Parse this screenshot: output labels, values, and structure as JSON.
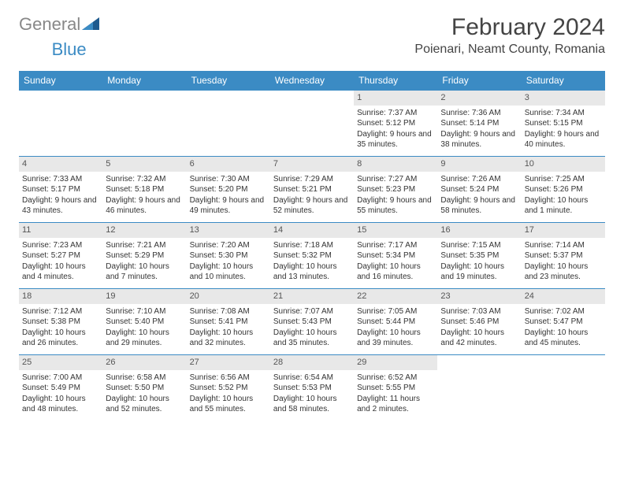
{
  "logo": {
    "text1": "General",
    "text2": "Blue"
  },
  "title": "February 2024",
  "location": "Poienari, Neamt County, Romania",
  "colors": {
    "header_bg": "#3b8bc4",
    "header_text": "#ffffff",
    "daynum_bg": "#e8e8e8",
    "border": "#3b8bc4",
    "text": "#333333",
    "background": "#ffffff"
  },
  "day_headers": [
    "Sunday",
    "Monday",
    "Tuesday",
    "Wednesday",
    "Thursday",
    "Friday",
    "Saturday"
  ],
  "weeks": [
    [
      {
        "empty": true
      },
      {
        "empty": true
      },
      {
        "empty": true
      },
      {
        "empty": true
      },
      {
        "num": "1",
        "sunrise": "Sunrise: 7:37 AM",
        "sunset": "Sunset: 5:12 PM",
        "daylight": "Daylight: 9 hours and 35 minutes."
      },
      {
        "num": "2",
        "sunrise": "Sunrise: 7:36 AM",
        "sunset": "Sunset: 5:14 PM",
        "daylight": "Daylight: 9 hours and 38 minutes."
      },
      {
        "num": "3",
        "sunrise": "Sunrise: 7:34 AM",
        "sunset": "Sunset: 5:15 PM",
        "daylight": "Daylight: 9 hours and 40 minutes."
      }
    ],
    [
      {
        "num": "4",
        "sunrise": "Sunrise: 7:33 AM",
        "sunset": "Sunset: 5:17 PM",
        "daylight": "Daylight: 9 hours and 43 minutes."
      },
      {
        "num": "5",
        "sunrise": "Sunrise: 7:32 AM",
        "sunset": "Sunset: 5:18 PM",
        "daylight": "Daylight: 9 hours and 46 minutes."
      },
      {
        "num": "6",
        "sunrise": "Sunrise: 7:30 AM",
        "sunset": "Sunset: 5:20 PM",
        "daylight": "Daylight: 9 hours and 49 minutes."
      },
      {
        "num": "7",
        "sunrise": "Sunrise: 7:29 AM",
        "sunset": "Sunset: 5:21 PM",
        "daylight": "Daylight: 9 hours and 52 minutes."
      },
      {
        "num": "8",
        "sunrise": "Sunrise: 7:27 AM",
        "sunset": "Sunset: 5:23 PM",
        "daylight": "Daylight: 9 hours and 55 minutes."
      },
      {
        "num": "9",
        "sunrise": "Sunrise: 7:26 AM",
        "sunset": "Sunset: 5:24 PM",
        "daylight": "Daylight: 9 hours and 58 minutes."
      },
      {
        "num": "10",
        "sunrise": "Sunrise: 7:25 AM",
        "sunset": "Sunset: 5:26 PM",
        "daylight": "Daylight: 10 hours and 1 minute."
      }
    ],
    [
      {
        "num": "11",
        "sunrise": "Sunrise: 7:23 AM",
        "sunset": "Sunset: 5:27 PM",
        "daylight": "Daylight: 10 hours and 4 minutes."
      },
      {
        "num": "12",
        "sunrise": "Sunrise: 7:21 AM",
        "sunset": "Sunset: 5:29 PM",
        "daylight": "Daylight: 10 hours and 7 minutes."
      },
      {
        "num": "13",
        "sunrise": "Sunrise: 7:20 AM",
        "sunset": "Sunset: 5:30 PM",
        "daylight": "Daylight: 10 hours and 10 minutes."
      },
      {
        "num": "14",
        "sunrise": "Sunrise: 7:18 AM",
        "sunset": "Sunset: 5:32 PM",
        "daylight": "Daylight: 10 hours and 13 minutes."
      },
      {
        "num": "15",
        "sunrise": "Sunrise: 7:17 AM",
        "sunset": "Sunset: 5:34 PM",
        "daylight": "Daylight: 10 hours and 16 minutes."
      },
      {
        "num": "16",
        "sunrise": "Sunrise: 7:15 AM",
        "sunset": "Sunset: 5:35 PM",
        "daylight": "Daylight: 10 hours and 19 minutes."
      },
      {
        "num": "17",
        "sunrise": "Sunrise: 7:14 AM",
        "sunset": "Sunset: 5:37 PM",
        "daylight": "Daylight: 10 hours and 23 minutes."
      }
    ],
    [
      {
        "num": "18",
        "sunrise": "Sunrise: 7:12 AM",
        "sunset": "Sunset: 5:38 PM",
        "daylight": "Daylight: 10 hours and 26 minutes."
      },
      {
        "num": "19",
        "sunrise": "Sunrise: 7:10 AM",
        "sunset": "Sunset: 5:40 PM",
        "daylight": "Daylight: 10 hours and 29 minutes."
      },
      {
        "num": "20",
        "sunrise": "Sunrise: 7:08 AM",
        "sunset": "Sunset: 5:41 PM",
        "daylight": "Daylight: 10 hours and 32 minutes."
      },
      {
        "num": "21",
        "sunrise": "Sunrise: 7:07 AM",
        "sunset": "Sunset: 5:43 PM",
        "daylight": "Daylight: 10 hours and 35 minutes."
      },
      {
        "num": "22",
        "sunrise": "Sunrise: 7:05 AM",
        "sunset": "Sunset: 5:44 PM",
        "daylight": "Daylight: 10 hours and 39 minutes."
      },
      {
        "num": "23",
        "sunrise": "Sunrise: 7:03 AM",
        "sunset": "Sunset: 5:46 PM",
        "daylight": "Daylight: 10 hours and 42 minutes."
      },
      {
        "num": "24",
        "sunrise": "Sunrise: 7:02 AM",
        "sunset": "Sunset: 5:47 PM",
        "daylight": "Daylight: 10 hours and 45 minutes."
      }
    ],
    [
      {
        "num": "25",
        "sunrise": "Sunrise: 7:00 AM",
        "sunset": "Sunset: 5:49 PM",
        "daylight": "Daylight: 10 hours and 48 minutes."
      },
      {
        "num": "26",
        "sunrise": "Sunrise: 6:58 AM",
        "sunset": "Sunset: 5:50 PM",
        "daylight": "Daylight: 10 hours and 52 minutes."
      },
      {
        "num": "27",
        "sunrise": "Sunrise: 6:56 AM",
        "sunset": "Sunset: 5:52 PM",
        "daylight": "Daylight: 10 hours and 55 minutes."
      },
      {
        "num": "28",
        "sunrise": "Sunrise: 6:54 AM",
        "sunset": "Sunset: 5:53 PM",
        "daylight": "Daylight: 10 hours and 58 minutes."
      },
      {
        "num": "29",
        "sunrise": "Sunrise: 6:52 AM",
        "sunset": "Sunset: 5:55 PM",
        "daylight": "Daylight: 11 hours and 2 minutes."
      },
      {
        "empty": true
      },
      {
        "empty": true
      }
    ]
  ]
}
